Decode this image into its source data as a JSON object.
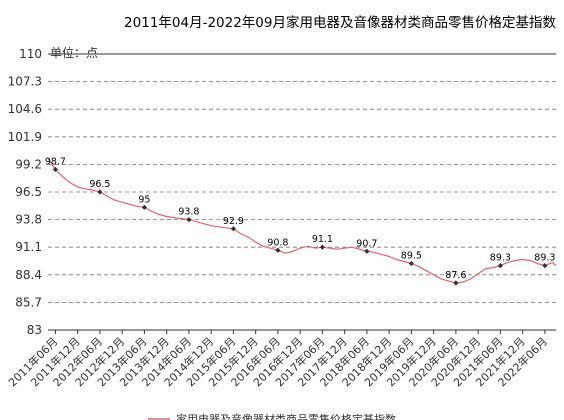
{
  "chart_data": {
    "type": "line",
    "title": "2011年04月-2022年09月家用电器及音像器材类商品零售价格定基指数",
    "unit_label": "单位：点",
    "ylim": [
      83,
      110
    ],
    "yticks": [
      "110",
      "107.3",
      "104.6",
      "101.9",
      "99.2",
      "96.5",
      "93.8",
      "91.1",
      "88.4",
      "85.7",
      "83"
    ],
    "grid": "horizontal-dashed",
    "xticks": [
      "2011年06月",
      "2011年12月",
      "2012年06月",
      "2012年12月",
      "2013年06月",
      "2013年12月",
      "2014年06月",
      "2014年12月",
      "2015年06月",
      "2015年12月",
      "2016年06月",
      "2016年12月",
      "2017年06月",
      "2017年12月",
      "2018年06月",
      "2018年12月",
      "2019年06月",
      "2019年12月",
      "2020年06月",
      "2020年12月",
      "2021年06月",
      "2021年12月",
      "2022年06月"
    ],
    "labeled_points": [
      {
        "x": "2011年06月",
        "y": 98.7,
        "label": "98.7"
      },
      {
        "x": "2012年06月",
        "y": 96.5,
        "label": "96.5"
      },
      {
        "x": "2013年06月",
        "y": 95,
        "label": "95"
      },
      {
        "x": "2014年06月",
        "y": 93.8,
        "label": "93.8"
      },
      {
        "x": "2015年06月",
        "y": 92.9,
        "label": "92.9"
      },
      {
        "x": "2016年06月",
        "y": 90.8,
        "label": "90.8"
      },
      {
        "x": "2017年06月",
        "y": 91.1,
        "label": "91.1"
      },
      {
        "x": "2018年06月",
        "y": 90.7,
        "label": "90.7"
      },
      {
        "x": "2019年06月",
        "y": 89.5,
        "label": "89.5"
      },
      {
        "x": "2020年06月",
        "y": 87.6,
        "label": "87.6"
      },
      {
        "x": "2021年06月",
        "y": 89.3,
        "label": "89.3"
      },
      {
        "x": "2022年06月",
        "y": 89.3,
        "label": "89.3"
      }
    ],
    "series": [
      {
        "color": "#e8606e",
        "x": [
          "2011-04",
          "2011-06",
          "2011-08",
          "2011-10",
          "2011-12",
          "2012-02",
          "2012-04",
          "2012-06",
          "2012-08",
          "2012-10",
          "2012-12",
          "2013-02",
          "2013-04",
          "2013-06",
          "2013-08",
          "2013-10",
          "2013-12",
          "2014-02",
          "2014-04",
          "2014-06",
          "2014-08",
          "2014-10",
          "2014-12",
          "2015-02",
          "2015-04",
          "2015-06",
          "2015-08",
          "2015-10",
          "2015-12",
          "2016-02",
          "2016-04",
          "2016-06",
          "2016-08",
          "2016-10",
          "2016-12",
          "2017-02",
          "2017-04",
          "2017-06",
          "2017-08",
          "2017-10",
          "2017-12",
          "2018-02",
          "2018-04",
          "2018-06",
          "2018-08",
          "2018-10",
          "2018-12",
          "2019-02",
          "2019-04",
          "2019-06",
          "2019-08",
          "2019-10",
          "2019-12",
          "2020-02",
          "2020-04",
          "2020-06",
          "2020-08",
          "2020-10",
          "2020-12",
          "2021-02",
          "2021-04",
          "2021-06",
          "2021-08",
          "2021-10",
          "2021-12",
          "2022-02",
          "2022-04",
          "2022-06",
          "2022-08",
          "2022-09"
        ],
        "values": [
          99.8,
          98.7,
          98.0,
          97.4,
          97.0,
          96.8,
          96.7,
          96.5,
          96.1,
          95.7,
          95.5,
          95.3,
          95.1,
          95.0,
          94.6,
          94.3,
          94.1,
          94.0,
          93.9,
          93.8,
          93.6,
          93.4,
          93.2,
          93.1,
          93.0,
          92.9,
          92.4,
          92.1,
          91.6,
          91.2,
          91.0,
          90.8,
          90.5,
          90.7,
          91.0,
          91.2,
          91.0,
          91.1,
          91.0,
          90.9,
          91.0,
          91.1,
          90.9,
          90.7,
          90.6,
          90.4,
          90.2,
          89.9,
          89.7,
          89.5,
          89.2,
          88.8,
          88.4,
          88.0,
          87.8,
          87.6,
          87.7,
          88.0,
          88.5,
          89.0,
          89.1,
          89.3,
          89.6,
          89.8,
          89.9,
          89.8,
          89.5,
          89.3,
          89.6,
          89.3
        ]
      }
    ],
    "legend_label": "家用电器及音像器材类商品零售价格定基指数"
  }
}
